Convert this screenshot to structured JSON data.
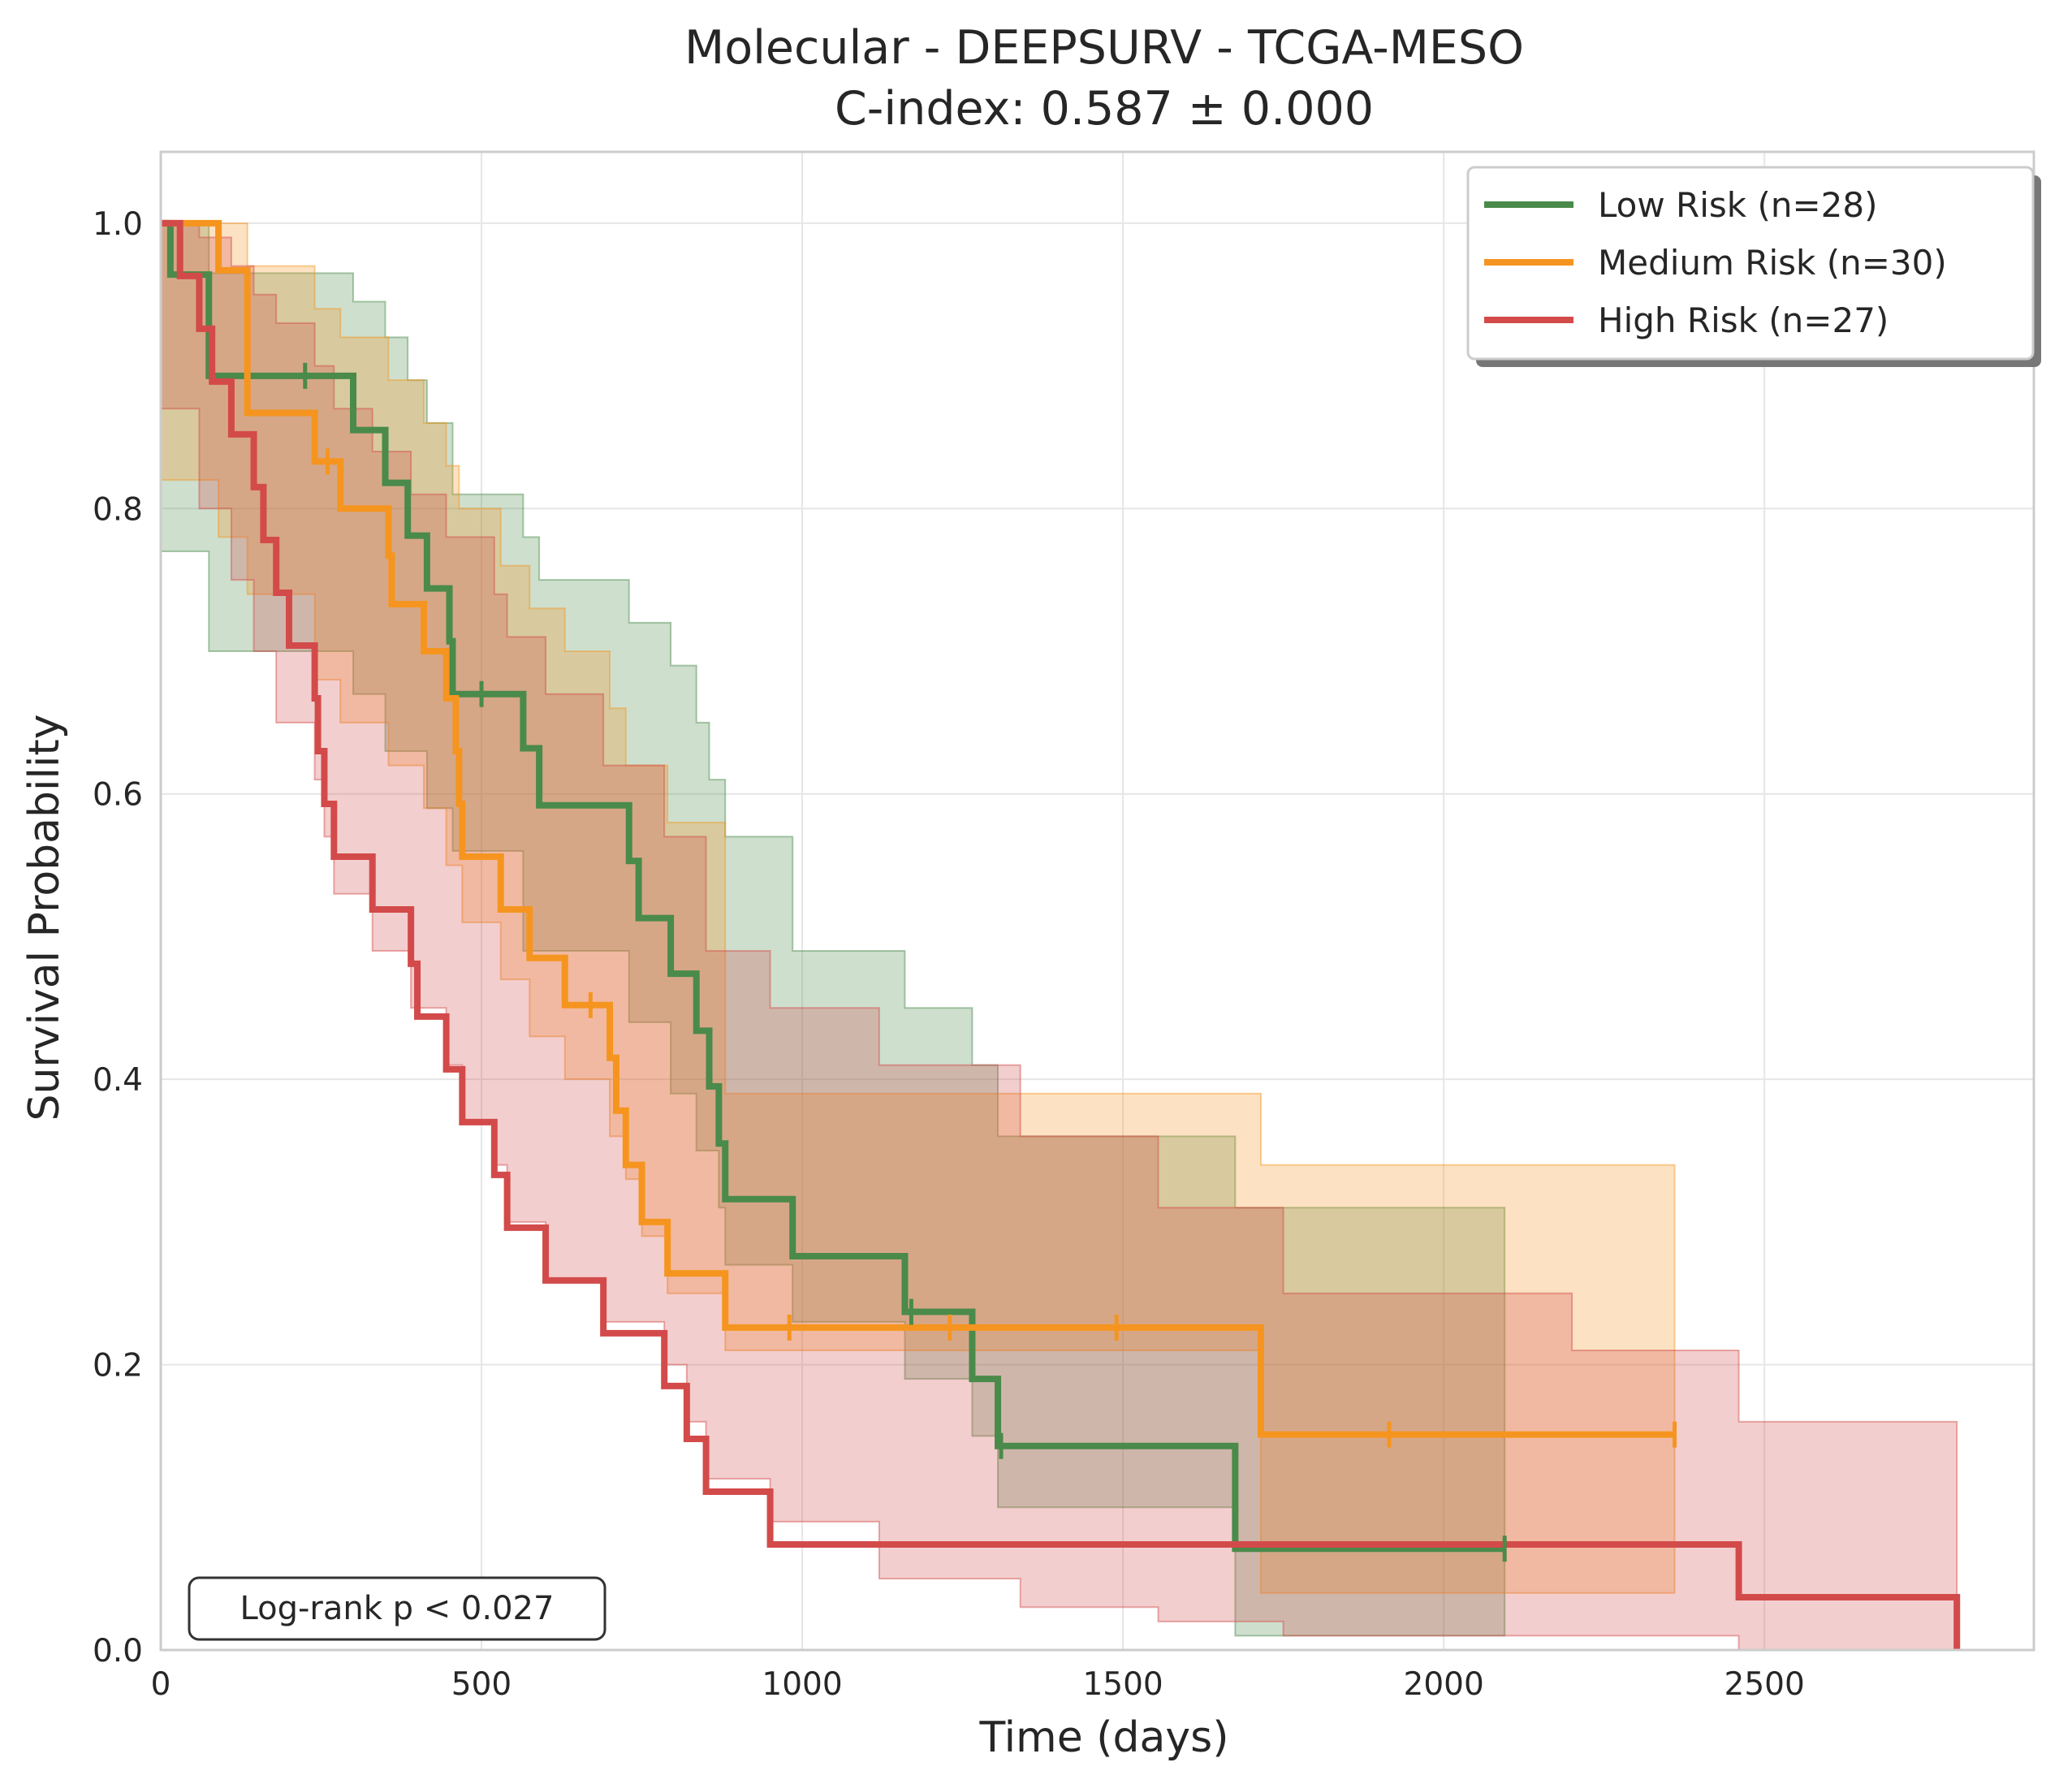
{
  "chart_data": {
    "type": "line",
    "subtype": "kaplan-meier",
    "title": "Molecular - DEEPSURV - TCGA-MESO",
    "subtitle": "C-index: 0.587 ± 0.000",
    "xlabel": "Time (days)",
    "ylabel": "Survival Probability",
    "xlim": [
      0,
      2920
    ],
    "ylim": [
      0,
      1.05
    ],
    "xticks": [
      0,
      500,
      1000,
      1500,
      2000,
      2500
    ],
    "yticks": [
      0.0,
      0.2,
      0.4,
      0.6,
      0.8,
      1.0
    ],
    "xtick_labels": [
      "0",
      "500",
      "1000",
      "1500",
      "2000",
      "2500"
    ],
    "ytick_labels": [
      "0.0",
      "0.2",
      "0.4",
      "0.6",
      "0.8",
      "1.0"
    ],
    "grid": true,
    "legend_position": "top-right",
    "annotation": "Log-rank p < 0.027",
    "series": [
      {
        "name": "Low Risk (n=28)",
        "color": "#4a8a4a",
        "steps": [
          [
            0,
            1.0
          ],
          [
            15,
            0.964
          ],
          [
            75,
            0.929
          ],
          [
            75,
            0.893
          ],
          [
            300,
            0.855
          ],
          [
            350,
            0.818
          ],
          [
            385,
            0.781
          ],
          [
            415,
            0.744
          ],
          [
            450,
            0.707
          ],
          [
            455,
            0.67
          ],
          [
            565,
            0.632
          ],
          [
            590,
            0.592
          ],
          [
            730,
            0.553
          ],
          [
            745,
            0.513
          ],
          [
            795,
            0.474
          ],
          [
            835,
            0.434
          ],
          [
            855,
            0.395
          ],
          [
            870,
            0.355
          ],
          [
            880,
            0.316
          ],
          [
            985,
            0.276
          ],
          [
            1160,
            0.237
          ],
          [
            1265,
            0.19
          ],
          [
            1305,
            0.143
          ],
          [
            1675,
            0.071
          ],
          [
            2095,
            0.071
          ]
        ],
        "lower": [
          [
            0,
            0.77
          ],
          [
            75,
            0.7
          ],
          [
            300,
            0.67
          ],
          [
            350,
            0.63
          ],
          [
            415,
            0.59
          ],
          [
            455,
            0.56
          ],
          [
            565,
            0.49
          ],
          [
            730,
            0.44
          ],
          [
            795,
            0.39
          ],
          [
            835,
            0.35
          ],
          [
            870,
            0.31
          ],
          [
            880,
            0.27
          ],
          [
            985,
            0.23
          ],
          [
            1160,
            0.19
          ],
          [
            1265,
            0.15
          ],
          [
            1305,
            0.1
          ],
          [
            1675,
            0.01
          ],
          [
            2095,
            0.01
          ]
        ],
        "upper": [
          [
            0,
            1.0
          ],
          [
            75,
            0.965
          ],
          [
            300,
            0.945
          ],
          [
            350,
            0.92
          ],
          [
            385,
            0.89
          ],
          [
            415,
            0.86
          ],
          [
            455,
            0.81
          ],
          [
            565,
            0.78
          ],
          [
            590,
            0.75
          ],
          [
            730,
            0.72
          ],
          [
            795,
            0.69
          ],
          [
            835,
            0.65
          ],
          [
            855,
            0.61
          ],
          [
            880,
            0.57
          ],
          [
            985,
            0.49
          ],
          [
            1160,
            0.45
          ],
          [
            1265,
            0.41
          ],
          [
            1305,
            0.36
          ],
          [
            1675,
            0.31
          ],
          [
            2095,
            0.25
          ]
        ],
        "censor": [
          [
            225,
            0.893
          ],
          [
            500,
            0.67
          ],
          [
            1170,
            0.237
          ],
          [
            1310,
            0.143
          ],
          [
            2095,
            0.071
          ]
        ]
      },
      {
        "name": "Medium Risk (n=30)",
        "color": "#f5951f",
        "steps": [
          [
            0,
            1.0
          ],
          [
            90,
            0.967
          ],
          [
            135,
            0.933
          ],
          [
            135,
            0.867
          ],
          [
            240,
            0.833
          ],
          [
            280,
            0.8
          ],
          [
            355,
            0.767
          ],
          [
            360,
            0.733
          ],
          [
            410,
            0.7
          ],
          [
            445,
            0.667
          ],
          [
            460,
            0.63
          ],
          [
            465,
            0.593
          ],
          [
            470,
            0.556
          ],
          [
            530,
            0.519
          ],
          [
            575,
            0.485
          ],
          [
            630,
            0.452
          ],
          [
            700,
            0.415
          ],
          [
            710,
            0.378
          ],
          [
            725,
            0.34
          ],
          [
            750,
            0.3
          ],
          [
            790,
            0.264
          ],
          [
            880,
            0.226
          ],
          [
            1715,
            0.151
          ],
          [
            2360,
            0.151
          ]
        ],
        "lower": [
          [
            0,
            0.82
          ],
          [
            90,
            0.78
          ],
          [
            135,
            0.74
          ],
          [
            240,
            0.68
          ],
          [
            280,
            0.65
          ],
          [
            355,
            0.62
          ],
          [
            410,
            0.59
          ],
          [
            445,
            0.55
          ],
          [
            470,
            0.51
          ],
          [
            530,
            0.47
          ],
          [
            575,
            0.43
          ],
          [
            630,
            0.4
          ],
          [
            700,
            0.36
          ],
          [
            725,
            0.33
          ],
          [
            750,
            0.29
          ],
          [
            790,
            0.25
          ],
          [
            880,
            0.21
          ],
          [
            1715,
            0.04
          ],
          [
            2360,
            0.04
          ]
        ],
        "upper": [
          [
            0,
            1.0
          ],
          [
            90,
            1.0
          ],
          [
            135,
            0.97
          ],
          [
            240,
            0.94
          ],
          [
            280,
            0.92
          ],
          [
            355,
            0.89
          ],
          [
            410,
            0.86
          ],
          [
            445,
            0.83
          ],
          [
            465,
            0.8
          ],
          [
            530,
            0.76
          ],
          [
            575,
            0.73
          ],
          [
            630,
            0.7
          ],
          [
            700,
            0.66
          ],
          [
            725,
            0.62
          ],
          [
            790,
            0.58
          ],
          [
            880,
            0.39
          ],
          [
            1715,
            0.34
          ],
          [
            2360,
            0.34
          ]
        ],
        "censor": [
          [
            260,
            0.833
          ],
          [
            670,
            0.452
          ],
          [
            980,
            0.226
          ],
          [
            1230,
            0.226
          ],
          [
            1490,
            0.226
          ],
          [
            1915,
            0.151
          ],
          [
            2360,
            0.151
          ]
        ]
      },
      {
        "name": "High Risk (n=27)",
        "color": "#d34a4a",
        "steps": [
          [
            0,
            1.0
          ],
          [
            30,
            0.963
          ],
          [
            60,
            0.926
          ],
          [
            80,
            0.889
          ],
          [
            110,
            0.852
          ],
          [
            145,
            0.815
          ],
          [
            160,
            0.778
          ],
          [
            180,
            0.741
          ],
          [
            200,
            0.704
          ],
          [
            240,
            0.667
          ],
          [
            245,
            0.63
          ],
          [
            255,
            0.593
          ],
          [
            270,
            0.556
          ],
          [
            330,
            0.519
          ],
          [
            390,
            0.481
          ],
          [
            400,
            0.444
          ],
          [
            445,
            0.407
          ],
          [
            470,
            0.37
          ],
          [
            520,
            0.333
          ],
          [
            540,
            0.296
          ],
          [
            600,
            0.259
          ],
          [
            690,
            0.222
          ],
          [
            785,
            0.185
          ],
          [
            820,
            0.148
          ],
          [
            850,
            0.111
          ],
          [
            950,
            0.074
          ],
          [
            2460,
            0.037
          ],
          [
            2800,
            0.0
          ]
        ],
        "lower": [
          [
            0,
            0.87
          ],
          [
            60,
            0.8
          ],
          [
            110,
            0.75
          ],
          [
            145,
            0.7
          ],
          [
            180,
            0.65
          ],
          [
            240,
            0.61
          ],
          [
            255,
            0.57
          ],
          [
            270,
            0.53
          ],
          [
            330,
            0.49
          ],
          [
            390,
            0.45
          ],
          [
            445,
            0.41
          ],
          [
            470,
            0.37
          ],
          [
            520,
            0.34
          ],
          [
            540,
            0.3
          ],
          [
            600,
            0.26
          ],
          [
            690,
            0.23
          ],
          [
            785,
            0.2
          ],
          [
            820,
            0.16
          ],
          [
            850,
            0.12
          ],
          [
            950,
            0.09
          ],
          [
            1120,
            0.05
          ],
          [
            1340,
            0.03
          ],
          [
            1555,
            0.02
          ],
          [
            1750,
            0.01
          ],
          [
            2460,
            0.0
          ],
          [
            2800,
            0.0
          ]
        ],
        "upper": [
          [
            0,
            1.0
          ],
          [
            60,
            0.99
          ],
          [
            110,
            0.97
          ],
          [
            145,
            0.95
          ],
          [
            180,
            0.93
          ],
          [
            240,
            0.9
          ],
          [
            270,
            0.87
          ],
          [
            330,
            0.84
          ],
          [
            390,
            0.81
          ],
          [
            445,
            0.78
          ],
          [
            520,
            0.74
          ],
          [
            540,
            0.71
          ],
          [
            600,
            0.67
          ],
          [
            690,
            0.62
          ],
          [
            785,
            0.57
          ],
          [
            850,
            0.49
          ],
          [
            950,
            0.45
          ],
          [
            1120,
            0.41
          ],
          [
            1340,
            0.36
          ],
          [
            1555,
            0.31
          ],
          [
            1750,
            0.25
          ],
          [
            2200,
            0.21
          ],
          [
            2460,
            0.16
          ],
          [
            2800,
            0.16
          ]
        ],
        "censor": []
      }
    ]
  }
}
